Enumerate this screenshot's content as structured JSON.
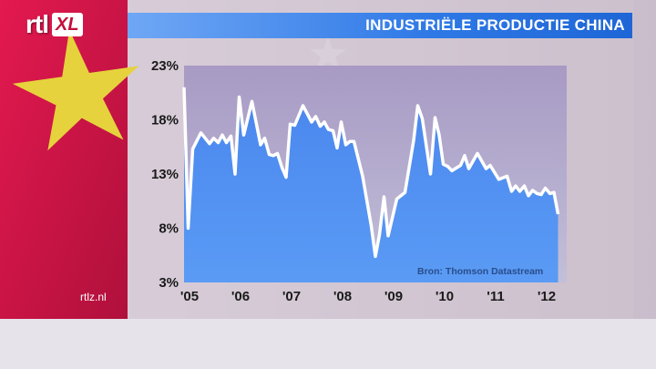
{
  "header": {
    "logo_rtl": "rtl",
    "logo_xl": "XL",
    "title": "INDUSTRIËLE PRODUCTIE CHINA"
  },
  "footer": {
    "site": "rtlz.nl",
    "source": "Bron: Thomson Datastream"
  },
  "colors": {
    "title_bar": "#2f79e6",
    "area_fill": "#4f8ff0",
    "line": "#ffffff",
    "flag_red": "#d8154a",
    "flag_star": "#e6d23c"
  },
  "chart_data": {
    "type": "area",
    "title": "INDUSTRIËLE PRODUCTIE CHINA",
    "xlabel": "",
    "ylabel": "",
    "ylim": [
      3,
      23
    ],
    "xlim": [
      2005.0,
      2012.5
    ],
    "yticks": [
      "23%",
      "18%",
      "13%",
      "8%",
      "3%"
    ],
    "ytick_values": [
      23,
      18,
      13,
      8,
      3
    ],
    "xticks": [
      "'05",
      "'06",
      "'07",
      "'08",
      "'09",
      "'10",
      "'11",
      "'12"
    ],
    "xtick_values": [
      2005,
      2006,
      2007,
      2008,
      2009,
      2010,
      2011,
      2012
    ],
    "grid": false,
    "legend": "none",
    "source": "Bron: Thomson Datastream",
    "x": [
      2005.0,
      2005.08,
      2005.17,
      2005.33,
      2005.5,
      2005.58,
      2005.67,
      2005.75,
      2005.83,
      2005.92,
      2006.0,
      2006.08,
      2006.17,
      2006.33,
      2006.5,
      2006.58,
      2006.67,
      2006.75,
      2006.83,
      2006.92,
      2007.0,
      2007.08,
      2007.17,
      2007.33,
      2007.5,
      2007.58,
      2007.67,
      2007.75,
      2007.83,
      2007.92,
      2008.0,
      2008.08,
      2008.17,
      2008.25,
      2008.33,
      2008.5,
      2008.67,
      2008.75,
      2008.83,
      2008.92,
      2009.0,
      2009.17,
      2009.33,
      2009.5,
      2009.58,
      2009.67,
      2009.83,
      2009.92,
      2010.0,
      2010.08,
      2010.17,
      2010.25,
      2010.42,
      2010.5,
      2010.58,
      2010.75,
      2010.92,
      2011.0,
      2011.17,
      2011.33,
      2011.42,
      2011.5,
      2011.58,
      2011.67,
      2011.75,
      2011.83,
      2011.92,
      2012.0,
      2012.08,
      2012.17,
      2012.25,
      2012.33
    ],
    "y": [
      21.0,
      8.0,
      15.3,
      16.8,
      15.8,
      16.3,
      15.9,
      16.6,
      15.9,
      16.5,
      13.0,
      20.1,
      16.6,
      19.7,
      15.7,
      16.3,
      14.8,
      14.7,
      14.9,
      13.6,
      12.7,
      17.6,
      17.5,
      19.3,
      17.8,
      18.3,
      17.4,
      17.8,
      17.1,
      17.0,
      15.4,
      17.8,
      15.7,
      16.0,
      16.0,
      12.8,
      8.2,
      5.4,
      7.4,
      10.9,
      7.3,
      10.7,
      11.3,
      16.1,
      19.3,
      18.1,
      13.0,
      18.2,
      16.6,
      13.9,
      13.7,
      13.3,
      13.8,
      14.7,
      13.5,
      14.9,
      13.5,
      13.8,
      12.5,
      12.8,
      11.4,
      11.9,
      11.4,
      11.9,
      11.0,
      11.5,
      11.2,
      11.1,
      11.7,
      11.2,
      11.3,
      9.3
    ]
  }
}
